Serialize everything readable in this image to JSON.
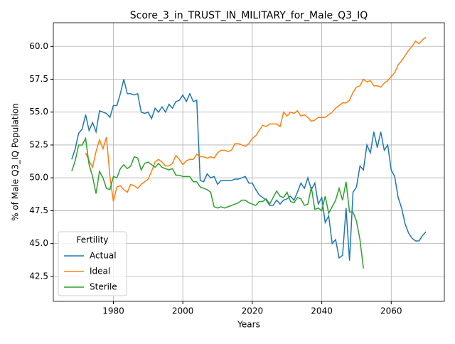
{
  "chart_data": {
    "type": "line",
    "title": "Score_3_in_TRUST_IN_MILITARY_for_Male_Q3_IQ",
    "x_label": "Years",
    "y_label": "% of Male Q3_IQ Population",
    "legend_title": "Fertility",
    "legend_loc": "lower left",
    "grid": true,
    "xlim": [
      1962.7,
      2075.3
    ],
    "ylim": [
      40.6,
      61.8
    ],
    "xticks": [
      1980,
      2000,
      2020,
      2040,
      2060
    ],
    "yticks": [
      42.5,
      {
        "value": 45,
        "label": "45.0"
      },
      47.5,
      {
        "value": 50,
        "label": "50.0"
      },
      52.5,
      {
        "value": 55,
        "label": "55.0"
      },
      57.5,
      {
        "value": 60,
        "label": "60.0"
      }
    ],
    "x": [
      1968,
      1969,
      1970,
      1971,
      1972,
      1973,
      1974,
      1975,
      1976,
      1977,
      1978,
      1979,
      1980,
      1981,
      1982,
      1983,
      1984,
      1985,
      1986,
      1987,
      1988,
      1989,
      1990,
      1991,
      1992,
      1993,
      1994,
      1995,
      1996,
      1997,
      1998,
      1999,
      2000,
      2001,
      2002,
      2003,
      2004,
      2005,
      2006,
      2007,
      2008,
      2009,
      2010,
      2011,
      2012,
      2013,
      2014,
      2015,
      2016,
      2017,
      2018,
      2019,
      2020,
      2021,
      2022,
      2023,
      2024,
      2025,
      2026,
      2027,
      2028,
      2029,
      2030,
      2031,
      2032,
      2033,
      2034,
      2035,
      2036,
      2037,
      2038,
      2039,
      2040,
      2041,
      2042,
      2043,
      2044,
      2045,
      2046,
      2047,
      2048,
      2049,
      2050,
      2051,
      2052,
      2053,
      2054,
      2055,
      2056,
      2057,
      2058,
      2059,
      2060,
      2061,
      2062,
      2063,
      2064,
      2065,
      2066,
      2067,
      2068,
      2069,
      2070
    ],
    "series": [
      {
        "name": "Actual",
        "color": "#1f77b4",
        "values": [
          51.4,
          52.2,
          53.4,
          53.7,
          54.8,
          53.6,
          54.2,
          53.5,
          55.1,
          55.0,
          54.9,
          54.6,
          55.5,
          55.5,
          56.4,
          57.5,
          56.4,
          56.4,
          56.3,
          56.4,
          55.0,
          54.9,
          55.0,
          54.5,
          55.3,
          55.0,
          55.4,
          55.0,
          55.6,
          55.3,
          55.8,
          55.9,
          56.3,
          55.8,
          56.4,
          55.8,
          55.9,
          49.8,
          49.7,
          50.3,
          50.0,
          50.1,
          49.5,
          49.8,
          49.8,
          49.8,
          49.8,
          49.9,
          49.9,
          50.0,
          50.1,
          49.6,
          49.6,
          49.1,
          48.7,
          48.5,
          48.3,
          47.9,
          47.9,
          48.3,
          48.0,
          48.3,
          48.4,
          48.6,
          48.3,
          48.9,
          49.6,
          49.2,
          50.0,
          49.1,
          49.6,
          48.0,
          48.5,
          46.6,
          47.1,
          45.0,
          45.3,
          43.9,
          44.1,
          47.7,
          43.7,
          48.9,
          49.3,
          50.9,
          50.6,
          52.5,
          51.9,
          53.5,
          52.3,
          53.5,
          52.1,
          52.5,
          50.6,
          50.1,
          48.5,
          47.7,
          46.5,
          45.8,
          45.4,
          45.2,
          45.2,
          45.6,
          45.9
        ]
      },
      {
        "name": "Ideal",
        "color": "#ff7f0e",
        "values": [
          null,
          null,
          null,
          null,
          51.9,
          51.3,
          50.8,
          52.0,
          52.9,
          52.2,
          53.1,
          50.1,
          48.2,
          49.3,
          49.4,
          49.1,
          48.9,
          49.5,
          49.4,
          49.2,
          49.5,
          49.7,
          49.9,
          50.5,
          51.2,
          51.4,
          51.2,
          50.9,
          50.9,
          51.1,
          51.7,
          51.4,
          51.0,
          51.3,
          51.4,
          51.4,
          51.8,
          51.6,
          51.6,
          51.5,
          51.6,
          51.5,
          51.9,
          52.1,
          52.1,
          52.0,
          52.1,
          52.6,
          52.6,
          52.5,
          52.4,
          52.6,
          53.0,
          53.2,
          53.6,
          54.0,
          53.9,
          54.1,
          54.1,
          54.1,
          53.9,
          55.0,
          54.7,
          55.0,
          54.9,
          55.1,
          54.7,
          54.8,
          54.6,
          54.3,
          54.4,
          54.6,
          54.6,
          54.6,
          54.8,
          55.0,
          55.3,
          55.5,
          55.7,
          55.7,
          55.9,
          56.5,
          56.9,
          57.0,
          57.5,
          57.3,
          57.4,
          57.0,
          57.0,
          56.9,
          57.2,
          57.4,
          57.7,
          58.0,
          58.6,
          58.9,
          59.3,
          59.7,
          60.0,
          60.4,
          60.2,
          60.5,
          60.7
        ]
      },
      {
        "name": "Sterile",
        "color": "#2ca02c",
        "values": [
          50.5,
          51.3,
          52.5,
          52.5,
          53.0,
          51.0,
          50.1,
          48.8,
          50.5,
          50.0,
          49.2,
          49.1,
          50.1,
          50.0,
          50.7,
          51.0,
          50.7,
          50.9,
          51.6,
          51.5,
          50.6,
          51.1,
          51.2,
          51.0,
          50.8,
          51.1,
          50.8,
          50.7,
          50.6,
          50.7,
          50.2,
          50.2,
          50.1,
          50.1,
          50.1,
          49.7,
          49.7,
          49.3,
          49.2,
          49.1,
          48.9,
          47.8,
          47.7,
          47.8,
          47.7,
          47.8,
          47.9,
          48.0,
          48.1,
          48.3,
          48.3,
          48.1,
          48.0,
          47.9,
          48.2,
          48.2,
          48.4,
          48.0,
          48.5,
          49.0,
          48.6,
          48.5,
          48.9,
          48.2,
          48.1,
          48.5,
          48.4,
          47.9,
          48.0,
          49.3,
          47.6,
          47.7,
          47.5,
          48.6,
          47.3,
          47.8,
          48.3,
          49.2,
          48.3,
          49.7,
          47.4,
          47.4,
          46.7,
          45.3,
          43.1,
          null,
          null,
          null,
          null,
          null,
          null,
          null,
          null,
          null,
          null,
          null,
          null,
          null,
          null,
          null,
          null,
          null,
          null
        ]
      }
    ]
  }
}
